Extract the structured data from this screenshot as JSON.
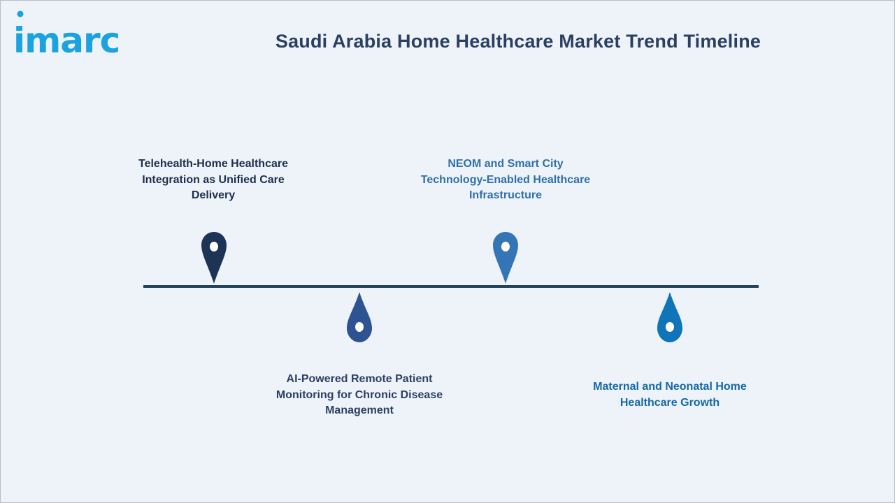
{
  "header": {
    "logo_text": "imarc",
    "title": "Saudi Arabia Home Healthcare Market Trend Timeline"
  },
  "colors": {
    "background": "#eef3f9",
    "title": "#2b3f63",
    "timeline_line": "#23425e",
    "logo": "#1aa3e0"
  },
  "timeline": {
    "items": [
      {
        "label": "Telehealth-Home Healthcare Integration as Unified Care Delivery",
        "position": "above",
        "marker_icon": "map-pin-icon",
        "color": "#1e3457"
      },
      {
        "label": "AI-Powered Remote Patient Monitoring for Chronic Disease Management",
        "position": "below",
        "marker_icon": "droplet-pin-icon",
        "color": "#2e5393"
      },
      {
        "label": "NEOM and Smart City Technology-Enabled Healthcare Infrastructure",
        "position": "above",
        "marker_icon": "map-pin-icon",
        "color": "#3475b5"
      },
      {
        "label": "Maternal and Neonatal Home Healthcare Growth",
        "position": "below",
        "marker_icon": "droplet-pin-icon",
        "color": "#0f74b8"
      }
    ]
  }
}
